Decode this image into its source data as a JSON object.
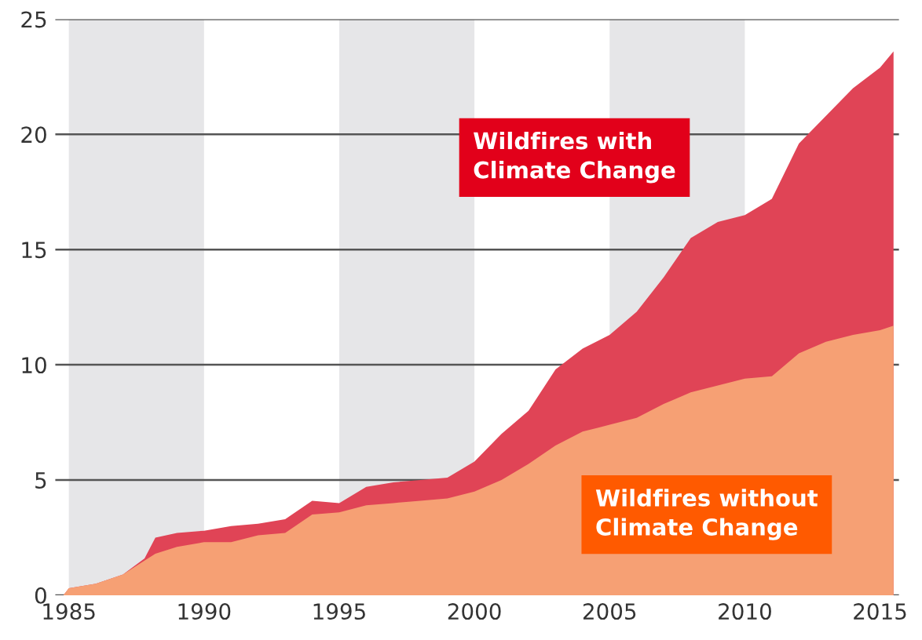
{
  "chart_data": {
    "type": "area",
    "x": [
      1984.8,
      1985,
      1986,
      1987,
      1987.8,
      1988.2,
      1989,
      1990,
      1991,
      1992,
      1993,
      1994,
      1995,
      1996,
      1997,
      1998,
      1999,
      2000,
      2001,
      2002,
      2003,
      2004,
      2005,
      2006,
      2007,
      2008,
      2009,
      2010,
      2011,
      2012,
      2013,
      2014,
      2015,
      2015.5
    ],
    "series": [
      {
        "name": "Wildfires with\nClimate Change",
        "color": "#e04456",
        "values": [
          0,
          0.3,
          0.5,
          0.9,
          1.6,
          2.5,
          2.7,
          2.8,
          3.0,
          3.1,
          3.3,
          4.1,
          4.0,
          4.7,
          4.9,
          5.0,
          5.1,
          5.8,
          7.0,
          8.0,
          9.8,
          10.7,
          11.3,
          12.3,
          13.8,
          15.5,
          16.2,
          16.5,
          17.2,
          19.6,
          20.8,
          22.0,
          22.9,
          23.6
        ]
      },
      {
        "name": "Wildfires without\nClimate Change",
        "color": "#f6a074",
        "values": [
          0,
          0.3,
          0.5,
          0.9,
          1.5,
          1.8,
          2.1,
          2.3,
          2.3,
          2.6,
          2.7,
          3.5,
          3.6,
          3.9,
          4.0,
          4.1,
          4.2,
          4.5,
          5.0,
          5.7,
          6.5,
          7.1,
          7.4,
          7.7,
          8.3,
          8.8,
          9.1,
          9.4,
          9.5,
          10.5,
          11.0,
          11.3,
          11.5,
          11.7
        ]
      }
    ],
    "xlim": [
      1984.5,
      2015.7
    ],
    "xticks": [
      1985,
      1990,
      1995,
      2000,
      2005,
      2010,
      2015
    ],
    "ylim": [
      0,
      25
    ],
    "yticks": [
      0,
      5,
      10,
      15,
      20,
      25
    ],
    "grid": "y",
    "bands": [
      {
        "axis": "x",
        "from": 1985,
        "to": 1990,
        "color": "#e6e6e8"
      },
      {
        "axis": "x",
        "from": 1995,
        "to": 2000,
        "color": "#e6e6e8"
      },
      {
        "axis": "x",
        "from": 2005,
        "to": 2010,
        "color": "#e6e6e8"
      }
    ]
  }
}
